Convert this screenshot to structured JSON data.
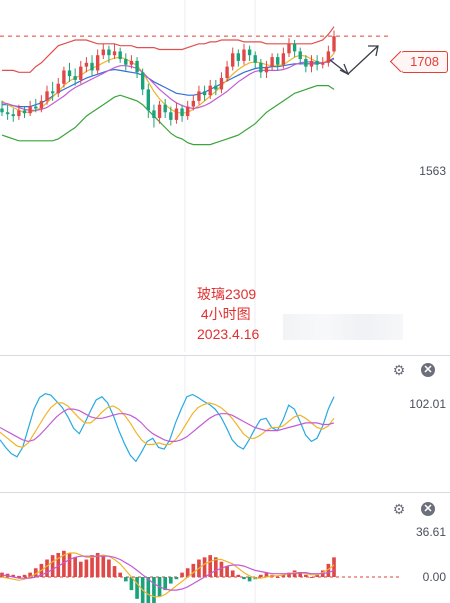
{
  "chart_data": [
    {
      "type": "candlestick",
      "title": "",
      "price_line": 1708,
      "price_tag": "1708",
      "y_tick_labels": [
        "1563"
      ],
      "ylim": [
        1540,
        1725
      ],
      "annotation_lines": [
        "玻璃2309",
        " 4小时图",
        "2023.4.16"
      ],
      "candles": [
        [
          1632,
          1628,
          1640,
          1624
        ],
        [
          1628,
          1626,
          1636,
          1620
        ],
        [
          1626,
          1624,
          1632,
          1618
        ],
        [
          1624,
          1630,
          1636,
          1620
        ],
        [
          1630,
          1627,
          1634,
          1622
        ],
        [
          1627,
          1634,
          1640,
          1624
        ],
        [
          1634,
          1632,
          1642,
          1628
        ],
        [
          1632,
          1640,
          1646,
          1628
        ],
        [
          1640,
          1650,
          1656,
          1636
        ],
        [
          1650,
          1648,
          1660,
          1640
        ],
        [
          1648,
          1658,
          1664,
          1644
        ],
        [
          1658,
          1672,
          1676,
          1654
        ],
        [
          1672,
          1666,
          1680,
          1660
        ],
        [
          1666,
          1662,
          1674,
          1656
        ],
        [
          1662,
          1676,
          1682,
          1658
        ],
        [
          1676,
          1680,
          1686,
          1670
        ],
        [
          1680,
          1672,
          1688,
          1666
        ],
        [
          1672,
          1688,
          1694,
          1668
        ],
        [
          1688,
          1694,
          1700,
          1684
        ],
        [
          1694,
          1688,
          1698,
          1680
        ],
        [
          1688,
          1692,
          1700,
          1684
        ],
        [
          1692,
          1684,
          1696,
          1680
        ],
        [
          1684,
          1678,
          1690,
          1672
        ],
        [
          1678,
          1682,
          1688,
          1674
        ],
        [
          1682,
          1670,
          1686,
          1664
        ],
        [
          1670,
          1652,
          1674,
          1646
        ],
        [
          1652,
          1630,
          1658,
          1622
        ],
        [
          1630,
          1622,
          1636,
          1612
        ],
        [
          1622,
          1636,
          1640,
          1616
        ],
        [
          1636,
          1628,
          1642,
          1622
        ],
        [
          1628,
          1620,
          1634,
          1614
        ],
        [
          1620,
          1632,
          1638,
          1616
        ],
        [
          1632,
          1624,
          1636,
          1618
        ],
        [
          1624,
          1634,
          1640,
          1620
        ],
        [
          1634,
          1640,
          1646,
          1630
        ],
        [
          1640,
          1650,
          1656,
          1636
        ],
        [
          1650,
          1646,
          1656,
          1640
        ],
        [
          1646,
          1656,
          1662,
          1642
        ],
        [
          1656,
          1652,
          1662,
          1646
        ],
        [
          1652,
          1664,
          1670,
          1648
        ],
        [
          1664,
          1676,
          1682,
          1660
        ],
        [
          1676,
          1690,
          1696,
          1672
        ],
        [
          1690,
          1682,
          1694,
          1676
        ],
        [
          1682,
          1694,
          1700,
          1678
        ],
        [
          1694,
          1688,
          1698,
          1682
        ],
        [
          1688,
          1680,
          1692,
          1674
        ],
        [
          1680,
          1670,
          1684,
          1664
        ],
        [
          1670,
          1676,
          1682,
          1664
        ],
        [
          1676,
          1686,
          1690,
          1672
        ],
        [
          1686,
          1678,
          1690,
          1672
        ],
        [
          1678,
          1690,
          1696,
          1674
        ],
        [
          1690,
          1700,
          1706,
          1686
        ],
        [
          1700,
          1692,
          1704,
          1686
        ],
        [
          1692,
          1684,
          1696,
          1678
        ],
        [
          1684,
          1676,
          1688,
          1670
        ],
        [
          1676,
          1682,
          1688,
          1670
        ],
        [
          1682,
          1678,
          1688,
          1672
        ],
        [
          1678,
          1680,
          1686,
          1674
        ],
        [
          1680,
          1692,
          1698,
          1676
        ],
        [
          1692,
          1708,
          1714,
          1690
        ]
      ],
      "series": [
        {
          "color": "#e05050",
          "values": [
            1672,
            1672,
            1672,
            1670,
            1670,
            1670,
            1676,
            1680,
            1686,
            1692,
            1698,
            1700,
            1702,
            1704,
            1704,
            1704,
            1702,
            1700,
            1700,
            1700,
            1700,
            1698,
            1698,
            1698,
            1696,
            1696,
            1696,
            1696,
            1694,
            1694,
            1694,
            1694,
            1694,
            1696,
            1698,
            1700,
            1700,
            1702,
            1702,
            1704,
            1704,
            1704,
            1704,
            1702,
            1702,
            1702,
            1702,
            1700,
            1700,
            1700,
            1700,
            1700,
            1700,
            1700,
            1700,
            1700,
            1702,
            1704,
            1710,
            1718
          ]
        },
        {
          "color": "#2f6fd6",
          "values": [
            1636,
            1636,
            1635,
            1634,
            1634,
            1634,
            1636,
            1638,
            1641,
            1645,
            1649,
            1652,
            1655,
            1658,
            1661,
            1664,
            1666,
            1668,
            1670,
            1672,
            1673,
            1672,
            1671,
            1670,
            1669,
            1667,
            1664,
            1660,
            1657,
            1654,
            1651,
            1648,
            1647,
            1646,
            1646,
            1647,
            1649,
            1652,
            1655,
            1658,
            1661,
            1664,
            1667,
            1670,
            1672,
            1674,
            1675,
            1675,
            1676,
            1676,
            1677,
            1678,
            1679,
            1679,
            1679,
            1679,
            1679,
            1680,
            1682,
            1685
          ]
        },
        {
          "color": "#f0b429",
          "values": [
            1640,
            1636,
            1633,
            1630,
            1628,
            1628,
            1630,
            1633,
            1638,
            1644,
            1650,
            1656,
            1661,
            1664,
            1667,
            1671,
            1674,
            1677,
            1680,
            1683,
            1685,
            1686,
            1684,
            1681,
            1677,
            1670,
            1660,
            1650,
            1642,
            1636,
            1631,
            1628,
            1627,
            1628,
            1631,
            1635,
            1640,
            1645,
            1650,
            1656,
            1662,
            1668,
            1673,
            1677,
            1680,
            1681,
            1680,
            1678,
            1677,
            1677,
            1678,
            1682,
            1686,
            1688,
            1687,
            1684,
            1681,
            1680,
            1683,
            1690
          ]
        },
        {
          "color": "#c35bd6",
          "values": [
            1638,
            1637,
            1635,
            1633,
            1631,
            1630,
            1630,
            1631,
            1633,
            1637,
            1641,
            1645,
            1650,
            1654,
            1657,
            1660,
            1663,
            1666,
            1669,
            1672,
            1675,
            1677,
            1677,
            1676,
            1674,
            1670,
            1664,
            1658,
            1652,
            1647,
            1642,
            1638,
            1635,
            1633,
            1632,
            1633,
            1635,
            1638,
            1642,
            1646,
            1650,
            1655,
            1660,
            1664,
            1668,
            1671,
            1672,
            1672,
            1672,
            1672,
            1673,
            1675,
            1678,
            1680,
            1681,
            1681,
            1680,
            1680,
            1681,
            1684
          ]
        },
        {
          "color": "#3aa53a",
          "values": [
            1604,
            1602,
            1600,
            1598,
            1598,
            1598,
            1598,
            1598,
            1598,
            1598,
            1600,
            1604,
            1608,
            1612,
            1618,
            1624,
            1628,
            1632,
            1636,
            1640,
            1644,
            1646,
            1644,
            1642,
            1640,
            1636,
            1630,
            1624,
            1618,
            1612,
            1606,
            1602,
            1600,
            1596,
            1594,
            1594,
            1594,
            1594,
            1596,
            1598,
            1600,
            1602,
            1604,
            1608,
            1612,
            1616,
            1622,
            1628,
            1632,
            1636,
            1640,
            1644,
            1648,
            1650,
            1652,
            1654,
            1656,
            1656,
            1656,
            1652
          ]
        }
      ]
    },
    {
      "type": "line",
      "title": "",
      "y_tick_labels": [
        "102.01"
      ],
      "ylim": [
        -20,
        110
      ],
      "series": [
        {
          "color": "#27a9e1",
          "values": [
            40,
            30,
            22,
            18,
            30,
            55,
            80,
            95,
            100,
            98,
            90,
            82,
            70,
            55,
            48,
            62,
            78,
            92,
            96,
            88,
            72,
            52,
            35,
            20,
            12,
            24,
            38,
            42,
            30,
            28,
            40,
            62,
            80,
            96,
            99,
            95,
            90,
            86,
            80,
            70,
            56,
            40,
            32,
            28,
            40,
            54,
            66,
            68,
            56,
            52,
            66,
            85,
            80,
            64,
            46,
            38,
            42,
            58,
            80,
            96
          ]
        },
        {
          "color": "#f0b429",
          "values": [
            50,
            44,
            38,
            32,
            30,
            36,
            48,
            60,
            72,
            82,
            88,
            88,
            84,
            76,
            68,
            62,
            62,
            68,
            76,
            82,
            84,
            80,
            72,
            62,
            50,
            40,
            34,
            34,
            36,
            34,
            34,
            40,
            50,
            62,
            74,
            82,
            86,
            88,
            86,
            82,
            76,
            68,
            58,
            48,
            42,
            42,
            46,
            52,
            56,
            56,
            58,
            64,
            70,
            72,
            68,
            62,
            56,
            54,
            58,
            68
          ]
        },
        {
          "color": "#c35bd6",
          "values": [
            56,
            52,
            48,
            44,
            40,
            38,
            40,
            46,
            54,
            62,
            70,
            76,
            80,
            80,
            78,
            74,
            70,
            68,
            68,
            70,
            72,
            74,
            74,
            72,
            68,
            62,
            54,
            48,
            44,
            40,
            38,
            38,
            40,
            44,
            50,
            56,
            62,
            68,
            72,
            74,
            74,
            72,
            68,
            64,
            60,
            56,
            54,
            52,
            52,
            52,
            54,
            56,
            58,
            60,
            62,
            62,
            62,
            60,
            60,
            62
          ]
        }
      ]
    },
    {
      "type": "bar",
      "title": "",
      "y_tick_labels": [
        "36.61",
        "0.00"
      ],
      "ylim": [
        -40,
        40
      ],
      "values": [
        4,
        3,
        2,
        1,
        2,
        4,
        8,
        12,
        16,
        20,
        22,
        24,
        22,
        18,
        14,
        16,
        20,
        22,
        20,
        16,
        10,
        4,
        -4,
        -12,
        -20,
        -26,
        -28,
        -24,
        -18,
        -12,
        -6,
        -2,
        4,
        8,
        12,
        16,
        18,
        20,
        18,
        14,
        10,
        6,
        2,
        -2,
        -4,
        -2,
        2,
        4,
        2,
        0,
        2,
        4,
        6,
        4,
        2,
        0,
        2,
        6,
        12,
        18
      ],
      "series": [
        {
          "color": "#f0b429",
          "values": [
            0,
            -1,
            -2,
            -3,
            -2,
            0,
            3,
            6,
            10,
            14,
            17,
            20,
            22,
            22,
            20,
            18,
            18,
            19,
            20,
            19,
            16,
            12,
            6,
            0,
            -6,
            -12,
            -16,
            -18,
            -18,
            -16,
            -12,
            -8,
            -4,
            0,
            4,
            8,
            12,
            14,
            16,
            16,
            14,
            12,
            8,
            4,
            1,
            -1,
            -1,
            0,
            1,
            1,
            2,
            3,
            4,
            4,
            3,
            2,
            2,
            4,
            7,
            11
          ]
        },
        {
          "color": "#c35bd6",
          "values": [
            2,
            1,
            0,
            -1,
            -1,
            -1,
            0,
            2,
            4,
            7,
            10,
            13,
            16,
            18,
            19,
            19,
            19,
            19,
            19,
            19,
            18,
            16,
            13,
            10,
            6,
            2,
            -2,
            -6,
            -9,
            -11,
            -12,
            -12,
            -11,
            -9,
            -6,
            -3,
            0,
            3,
            6,
            8,
            10,
            11,
            11,
            10,
            8,
            6,
            5,
            4,
            3,
            3,
            3,
            3,
            3,
            4,
            4,
            3,
            3,
            3,
            4,
            6
          ]
        }
      ]
    }
  ],
  "toolbar": {
    "gear_icon": "gear-icon",
    "close_icon": "close-icon"
  }
}
